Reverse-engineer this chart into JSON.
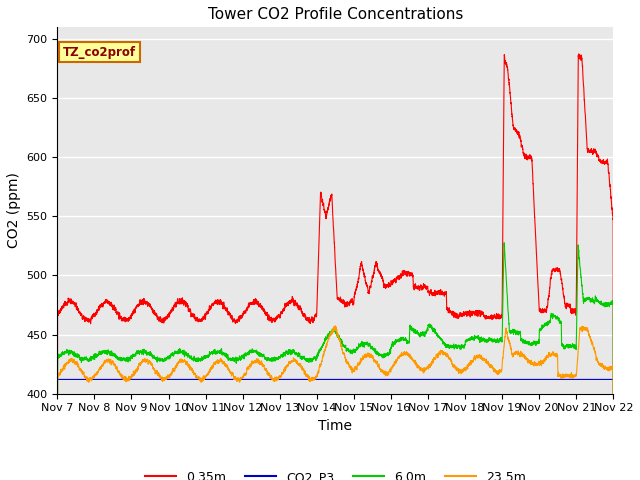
{
  "title": "Tower CO2 Profile Concentrations",
  "ylabel": "CO2 (ppm)",
  "xlabel": "Time",
  "ylim": [
    400,
    710
  ],
  "yticks": [
    400,
    450,
    500,
    550,
    600,
    650,
    700
  ],
  "xtick_labels": [
    "Nov 7",
    "Nov 8",
    "Nov 9",
    "Nov 10",
    "Nov 11",
    "Nov 12",
    "Nov 13",
    "Nov 14",
    "Nov 15",
    "Nov 16",
    "Nov 17",
    "Nov 18",
    "Nov 19",
    "Nov 20",
    "Nov 21",
    "Nov 22"
  ],
  "colors": {
    "0.35m": "#ff0000",
    "CO2_P3": "#0000cc",
    "6.0m": "#00cc00",
    "23.5m": "#ff9900"
  },
  "annotation_text": "TZ_co2prof",
  "annotation_bg": "#ffff99",
  "annotation_border": "#cc6600",
  "annotation_text_color": "#8B0000",
  "plot_bg": "#e8e8e8",
  "title_fontsize": 11,
  "tick_fontsize": 8,
  "ylabel_fontsize": 10,
  "xlabel_fontsize": 10
}
